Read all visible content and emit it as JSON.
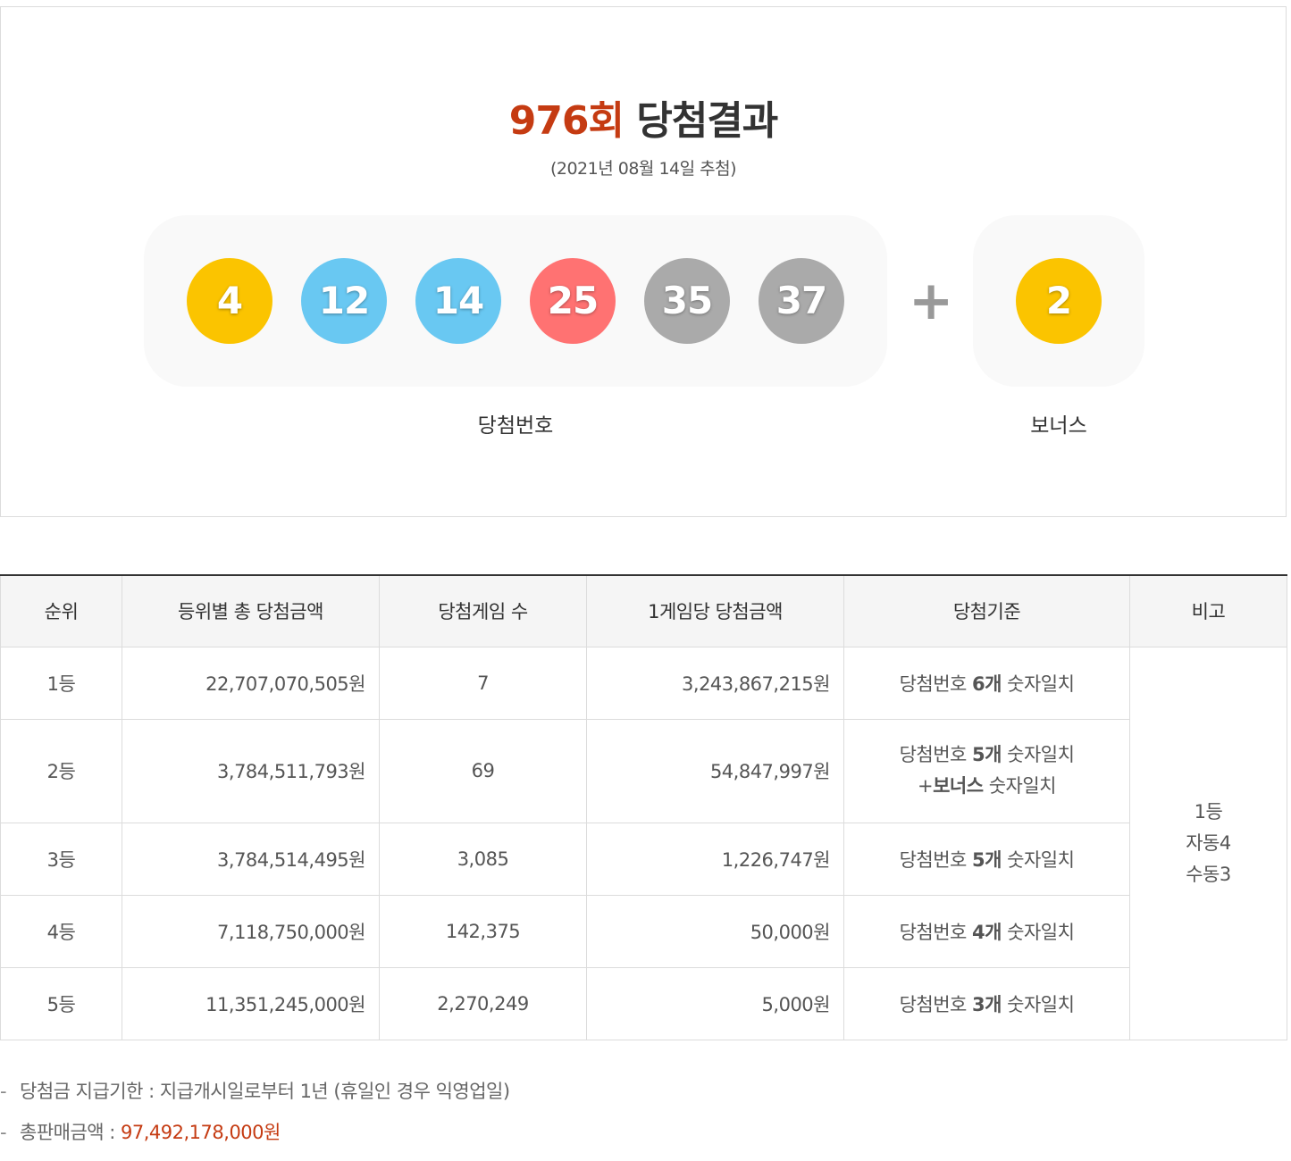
{
  "header": {
    "round": "976회",
    "title_suffix": " 당첨결과",
    "date": "(2021년 08월 14일 추첨)"
  },
  "numbers": [
    {
      "value": "4",
      "color": "#fbc400"
    },
    {
      "value": "12",
      "color": "#69c8f2"
    },
    {
      "value": "14",
      "color": "#69c8f2"
    },
    {
      "value": "25",
      "color": "#ff7272"
    },
    {
      "value": "35",
      "color": "#aaaaaa"
    },
    {
      "value": "37",
      "color": "#aaaaaa"
    }
  ],
  "bonus": {
    "value": "2",
    "color": "#fbc400"
  },
  "plus_symbol": "+",
  "labels": {
    "winning": "당첨번호",
    "bonus": "보너스"
  },
  "table": {
    "headers": [
      "순위",
      "등위별 총 당첨금액",
      "당첨게임 수",
      "1게임당 당첨금액",
      "당첨기준",
      "비고"
    ],
    "rows": [
      {
        "rank": "1등",
        "total": "22,707,070,505원",
        "games": "7",
        "per_game": "3,243,867,215원",
        "crit_pre": "당첨번호 ",
        "crit_bold": "6개",
        "crit_post": " 숫자일치"
      },
      {
        "rank": "2등",
        "total": "3,784,511,793원",
        "games": "69",
        "per_game": "54,847,997원",
        "crit_pre": "당첨번호 ",
        "crit_bold": "5개",
        "crit_post": " 숫자일치",
        "crit2_pre": "+",
        "crit2_bold": "보너스",
        "crit2_post": " 숫자일치"
      },
      {
        "rank": "3등",
        "total": "3,784,514,495원",
        "games": "3,085",
        "per_game": "1,226,747원",
        "crit_pre": "당첨번호 ",
        "crit_bold": "5개",
        "crit_post": " 숫자일치"
      },
      {
        "rank": "4등",
        "total": "7,118,750,000원",
        "games": "142,375",
        "per_game": "50,000원",
        "crit_pre": "당첨번호 ",
        "crit_bold": "4개",
        "crit_post": " 숫자일치"
      },
      {
        "rank": "5등",
        "total": "11,351,245,000원",
        "games": "2,270,249",
        "per_game": "5,000원",
        "crit_pre": "당첨번호 ",
        "crit_bold": "3개",
        "crit_post": " 숫자일치"
      }
    ],
    "remarks": [
      "1등",
      "자동4",
      "수동3"
    ]
  },
  "notes": {
    "dash": "-",
    "deadline": "당첨금 지급기한 : 지급개시일로부터 1년 (휴일인 경우 익영업일)",
    "sales_label": "총판매금액 : ",
    "sales_amount": "97,492,178,000원"
  }
}
